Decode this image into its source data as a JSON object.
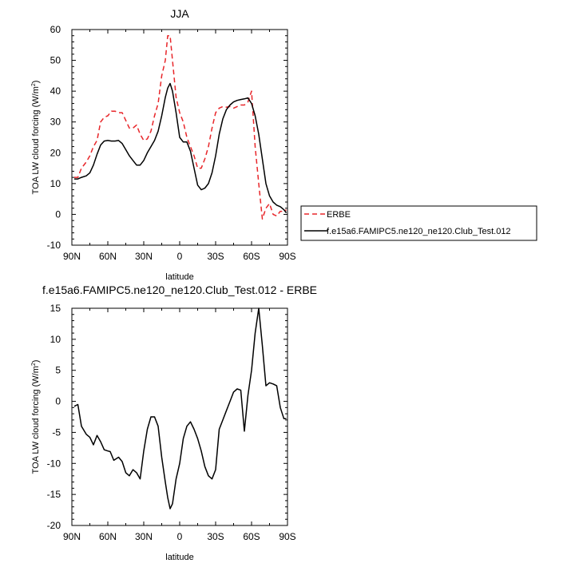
{
  "chart_data": [
    {
      "type": "line",
      "title": "JJA",
      "xlabel": "latitude",
      "ylabel": "TOA LW cloud forcing (W/m",
      "ylabel_sup": "2",
      "ylabel_close": ")",
      "xlim": [
        90,
        -90
      ],
      "ylim": [
        -10,
        60
      ],
      "xticks": [
        {
          "v": 90,
          "label": "90N"
        },
        {
          "v": 60,
          "label": "60N"
        },
        {
          "v": 30,
          "label": "30N"
        },
        {
          "v": 0,
          "label": "0"
        },
        {
          "v": -30,
          "label": "30S"
        },
        {
          "v": -60,
          "label": "60S"
        },
        {
          "v": -90,
          "label": "90S"
        }
      ],
      "yticks": [
        {
          "v": 60,
          "label": "60"
        },
        {
          "v": 50,
          "label": "50"
        },
        {
          "v": 40,
          "label": "40"
        },
        {
          "v": 30,
          "label": "30"
        },
        {
          "v": 20,
          "label": "20"
        },
        {
          "v": 10,
          "label": "10"
        },
        {
          "v": 0,
          "label": "0"
        },
        {
          "v": -10,
          "label": "-10"
        }
      ],
      "legend": {
        "position": "right",
        "entries": [
          "ERBE",
          "f.e15a6.FAMIPC5.ne120_ne120.Club_Test.012"
        ]
      },
      "series": [
        {
          "name": "ERBE",
          "color": "#e8262a",
          "dash": "dashed",
          "x": [
            88,
            85,
            82,
            78,
            75,
            72,
            69,
            66,
            63,
            60,
            57,
            54,
            51,
            48,
            45,
            42,
            39,
            36,
            33,
            30,
            27,
            24,
            21,
            18,
            15,
            12,
            10,
            8,
            6,
            3,
            0,
            -3,
            -6,
            -9,
            -12,
            -15,
            -18,
            -21,
            -24,
            -27,
            -30,
            -33,
            -36,
            -39,
            -42,
            -45,
            -48,
            -51,
            -54,
            -57,
            -60,
            -63,
            -66,
            -69,
            -72,
            -75,
            -78,
            -81,
            -84,
            -87,
            -89
          ],
          "y": [
            12,
            12,
            15,
            17,
            19,
            22,
            24,
            30,
            31.5,
            32,
            33.5,
            33.5,
            33,
            33,
            30.5,
            28,
            28,
            29,
            26,
            24,
            24.5,
            27,
            32,
            36,
            45,
            50,
            58,
            58,
            50,
            38,
            33,
            30,
            25,
            22,
            19,
            15,
            15,
            18,
            22,
            28,
            33,
            34.5,
            35,
            34.8,
            35,
            34.5,
            35,
            35.5,
            35.5,
            36.5,
            40,
            22,
            10,
            -1.5,
            2,
            3.5,
            0,
            -0.5,
            1,
            1,
            1.5
          ]
        },
        {
          "name": "f.e15a6.FAMIPC5.ne120_ne120.Club_Test.012",
          "color": "#000000",
          "dash": "solid",
          "x": [
            88,
            85,
            82,
            78,
            75,
            72,
            69,
            66,
            63,
            60,
            57,
            54,
            51,
            48,
            45,
            42,
            39,
            36,
            33,
            30,
            27,
            24,
            21,
            18,
            15,
            12,
            10,
            8,
            6,
            3,
            0,
            -3,
            -6,
            -9,
            -12,
            -15,
            -18,
            -21,
            -24,
            -27,
            -30,
            -33,
            -36,
            -39,
            -42,
            -45,
            -48,
            -51,
            -54,
            -57,
            -60,
            -63,
            -66,
            -69,
            -72,
            -75,
            -78,
            -81,
            -84,
            -87,
            -89
          ],
          "y": [
            11.5,
            11.5,
            12,
            12.5,
            13.5,
            16,
            19.5,
            22.5,
            23.8,
            24,
            23.8,
            23.8,
            24,
            23,
            21,
            19,
            17.5,
            16,
            16,
            17.5,
            20,
            22,
            24,
            27,
            32,
            38,
            41,
            42.5,
            40,
            33,
            25,
            23.5,
            23.5,
            20.5,
            15,
            9.5,
            8,
            8.5,
            10,
            13.5,
            19,
            26,
            31,
            34,
            35.5,
            36.5,
            37,
            37.3,
            37.5,
            37.8,
            36,
            32,
            26,
            18,
            10,
            6,
            4,
            3,
            2.5,
            1.5,
            0.5
          ]
        }
      ]
    },
    {
      "type": "line",
      "title": "f.e15a6.FAMIPC5.ne120_ne120.Club_Test.012 - ERBE",
      "xlabel": "latitude",
      "ylabel": "TOA LW cloud forcing (W/m",
      "ylabel_sup": "2",
      "ylabel_close": ")",
      "xlim": [
        90,
        -90
      ],
      "ylim": [
        -20,
        15
      ],
      "xticks": [
        {
          "v": 90,
          "label": "90N"
        },
        {
          "v": 60,
          "label": "60N"
        },
        {
          "v": 30,
          "label": "30N"
        },
        {
          "v": 0,
          "label": "0"
        },
        {
          "v": -30,
          "label": "30S"
        },
        {
          "v": -60,
          "label": "60S"
        },
        {
          "v": -90,
          "label": "90S"
        }
      ],
      "yticks": [
        {
          "v": 15,
          "label": "15"
        },
        {
          "v": 10,
          "label": "10"
        },
        {
          "v": 5,
          "label": "5"
        },
        {
          "v": 0,
          "label": "0"
        },
        {
          "v": -5,
          "label": "-5"
        },
        {
          "v": -10,
          "label": "-10"
        },
        {
          "v": -15,
          "label": "-15"
        },
        {
          "v": -20,
          "label": "-20"
        }
      ],
      "series": [
        {
          "name": "f.e15a6.FAMIPC5.ne120_ne120.Club_Test.012 - ERBE",
          "color": "#000000",
          "dash": "solid",
          "x": [
            88,
            85,
            82,
            78,
            75,
            72,
            69,
            66,
            63,
            60,
            58,
            55,
            51,
            48,
            45,
            42,
            39,
            36,
            33,
            30,
            27,
            24,
            21,
            18,
            15,
            12,
            10,
            8,
            6,
            3,
            0,
            -3,
            -6,
            -9,
            -12,
            -15,
            -18,
            -21,
            -24,
            -27,
            -30,
            -33,
            -36,
            -39,
            -42,
            -45,
            -48,
            -51,
            -54,
            -57,
            -60,
            -63,
            -66,
            -69,
            -72,
            -75,
            -78,
            -81,
            -84,
            -87,
            -89
          ],
          "y": [
            -0.8,
            -0.5,
            -4,
            -5.3,
            -5.8,
            -7,
            -5.5,
            -6.5,
            -7.8,
            -8,
            -8.1,
            -9.5,
            -9,
            -9.7,
            -11.5,
            -12,
            -11,
            -11.5,
            -12.5,
            -8,
            -4.5,
            -2.5,
            -2.5,
            -4,
            -9,
            -13,
            -15.5,
            -17.3,
            -16.5,
            -12.5,
            -10,
            -6,
            -4,
            -3.3,
            -4.5,
            -6,
            -8,
            -10.5,
            -12,
            -12.5,
            -11,
            -4.5,
            -3,
            -1.5,
            0,
            1.5,
            2,
            1.8,
            -4.8,
            1,
            5,
            11,
            15,
            9,
            2.5,
            3,
            2.8,
            2.5,
            -1,
            -2.8,
            -2.8
          ]
        }
      ]
    }
  ]
}
